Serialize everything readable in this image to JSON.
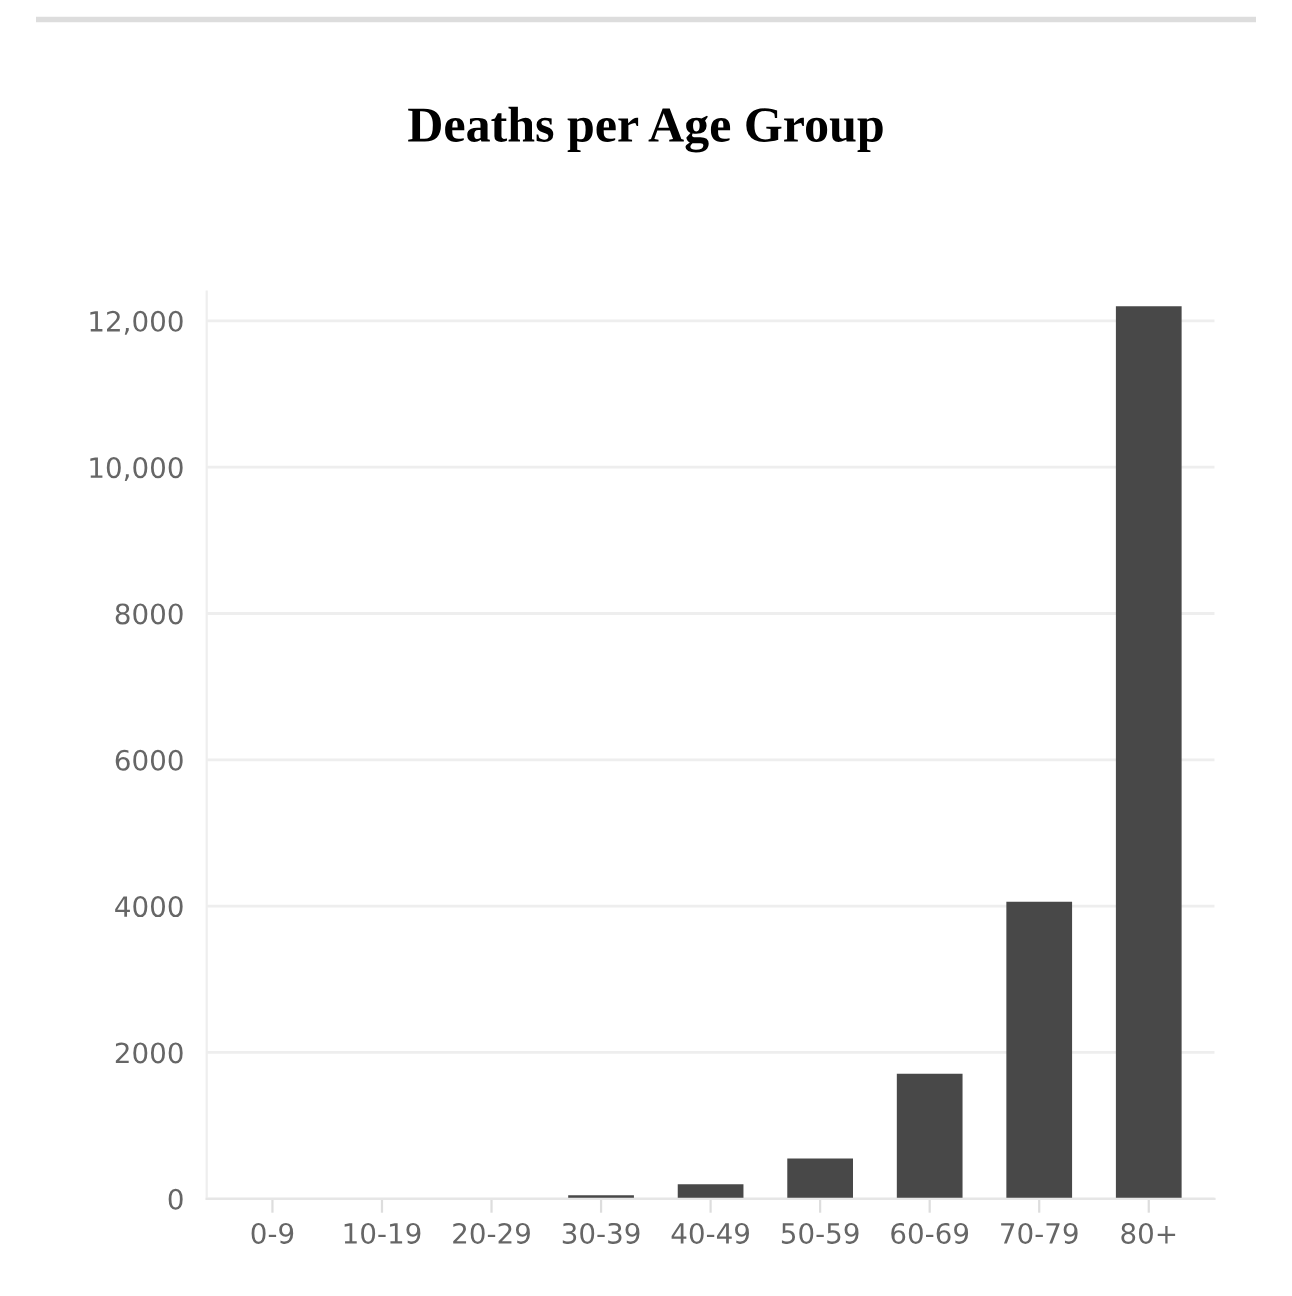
{
  "chart_data": {
    "type": "bar",
    "title": "Deaths per Age Group",
    "categories": [
      "0-9",
      "10-19",
      "20-29",
      "30-39",
      "40-49",
      "50-59",
      "60-69",
      "70-79",
      "80+"
    ],
    "values": [
      0,
      0,
      0,
      50,
      200,
      550,
      1710,
      4060,
      12200
    ],
    "color": "#484848",
    "ylim": [
      0,
      12400
    ],
    "yticks": [
      0,
      2000,
      4000,
      6000,
      8000,
      {
        "value": 10000,
        "label": "10,000"
      },
      {
        "value": 12000,
        "label": "12,000"
      }
    ],
    "grid": "y"
  }
}
